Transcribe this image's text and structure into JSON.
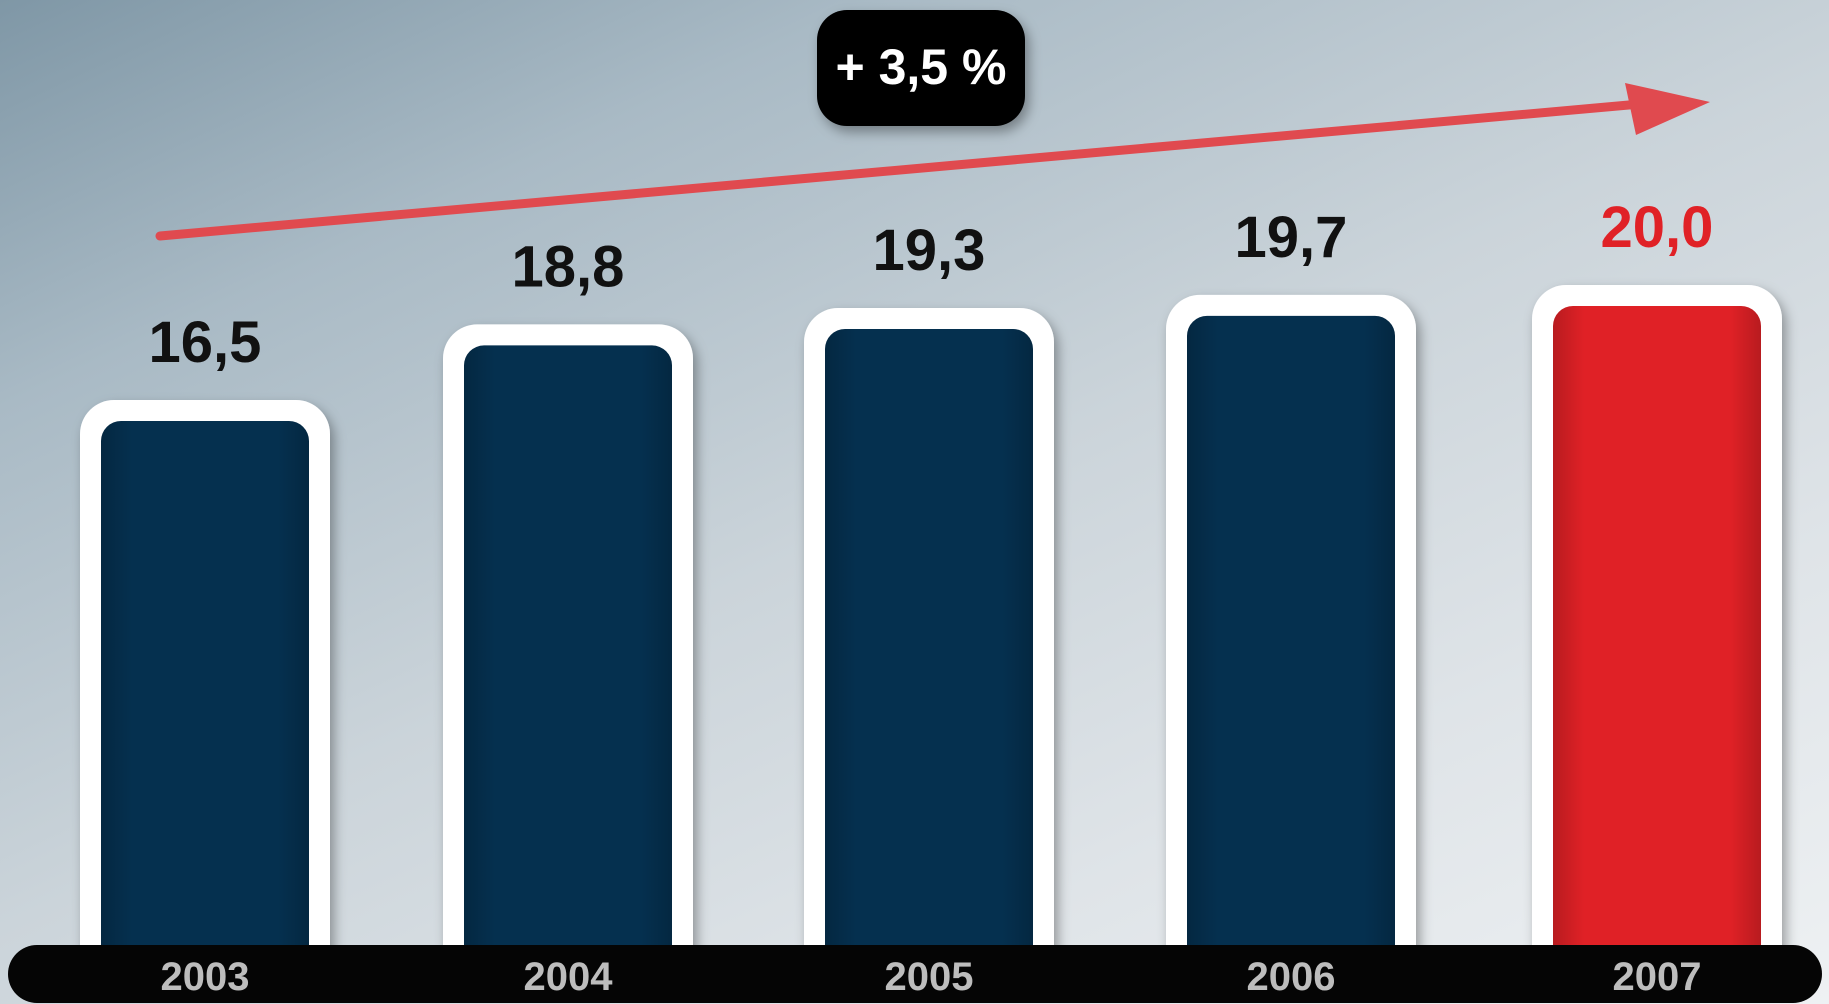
{
  "chart_data": {
    "type": "bar",
    "categories": [
      "2003",
      "2004",
      "2005",
      "2006",
      "2007"
    ],
    "values": [
      16.5,
      18.8,
      19.3,
      19.7,
      20.0
    ],
    "value_labels": [
      "16,5",
      "18,8",
      "19,3",
      "19,7",
      "20,0"
    ],
    "highlight_index": 4,
    "annotation": "+ 3,5 %",
    "title": "",
    "xlabel": "",
    "ylabel": "",
    "grid": false,
    "legend": "none"
  },
  "colors": {
    "bar": "#05304f",
    "bar_highlight": "#e02126",
    "bar_border": "#ffffff",
    "label": "#111111",
    "label_highlight": "#e02126",
    "arrow": "#e04a4f",
    "axis_band": "#050505",
    "badge": "#050505"
  }
}
